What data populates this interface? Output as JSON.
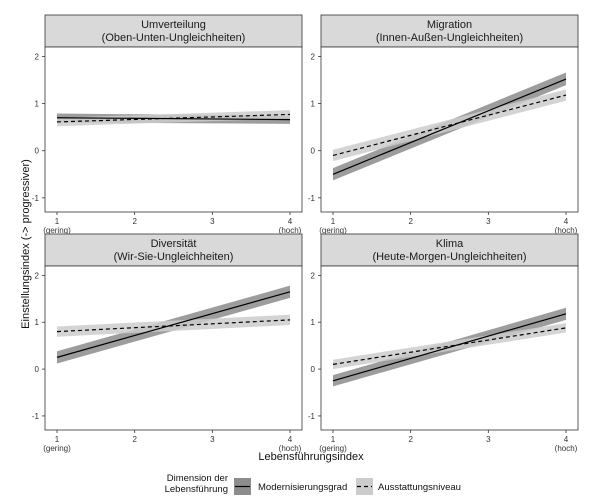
{
  "chart_data": {
    "type": "line",
    "ylabel": "Einstellungsindex (-> progressiver)",
    "xlabel": "Lebensführungsindex",
    "x_ticks": [
      "1\n(gering)",
      "2",
      "3",
      "4\n(hoch)"
    ],
    "x_tick_values": [
      1,
      2,
      3,
      4
    ],
    "xlim": [
      1,
      4
    ],
    "y_ticks": [
      "-1",
      "0",
      "1",
      "2"
    ],
    "y_tick_values": [
      -1,
      0,
      1,
      2
    ],
    "ylim": [
      -1.3,
      2.2
    ],
    "grid": false,
    "legend": {
      "title": "Dimension der\nLebensführung",
      "placement": "bottom",
      "entries": [
        {
          "label": "Modernisierungsgrad",
          "style": "solid",
          "band_color": "#8c8c8c"
        },
        {
          "label": "Ausstattungsniveau",
          "style": "dashed",
          "band_color": "#cccccc"
        }
      ]
    },
    "panels": [
      {
        "title_line1": "Umverteilung",
        "title_line2": "(Oben-Unten-Ungleichheiten)",
        "series": [
          {
            "name": "Modernisierungsgrad",
            "x": [
              1,
              4
            ],
            "y": [
              0.7,
              0.66
            ],
            "lower": [
              0.6,
              0.57
            ],
            "upper": [
              0.79,
              0.74
            ]
          },
          {
            "name": "Ausstattungsniveau",
            "x": [
              1,
              4
            ],
            "y": [
              0.61,
              0.77
            ],
            "lower": [
              0.52,
              0.68
            ],
            "upper": [
              0.7,
              0.86
            ]
          }
        ]
      },
      {
        "title_line1": "Migration",
        "title_line2": "(Innen-Außen-Ungleichheiten)",
        "series": [
          {
            "name": "Modernisierungsgrad",
            "x": [
              1,
              4
            ],
            "y": [
              -0.5,
              1.52
            ],
            "lower": [
              -0.63,
              1.39
            ],
            "upper": [
              -0.37,
              1.66
            ]
          },
          {
            "name": "Ausstattungsniveau",
            "x": [
              1,
              4
            ],
            "y": [
              -0.1,
              1.18
            ],
            "lower": [
              -0.22,
              1.06
            ],
            "upper": [
              0.02,
              1.3
            ]
          }
        ]
      },
      {
        "title_line1": "Diversität",
        "title_line2": "(Wir-Sie-Ungleichheiten)",
        "series": [
          {
            "name": "Modernisierungsgrad",
            "x": [
              1,
              4
            ],
            "y": [
              0.25,
              1.65
            ],
            "lower": [
              0.12,
              1.52
            ],
            "upper": [
              0.38,
              1.78
            ]
          },
          {
            "name": "Ausstattungsniveau",
            "x": [
              1,
              4
            ],
            "y": [
              0.8,
              1.05
            ],
            "lower": [
              0.69,
              0.94
            ],
            "upper": [
              0.91,
              1.16
            ]
          }
        ]
      },
      {
        "title_line1": "Klima",
        "title_line2": "(Heute-Morgen-Ungleichheiten)",
        "series": [
          {
            "name": "Modernisierungsgrad",
            "x": [
              1,
              4
            ],
            "y": [
              -0.25,
              1.18
            ],
            "lower": [
              -0.37,
              1.05
            ],
            "upper": [
              -0.13,
              1.31
            ]
          },
          {
            "name": "Ausstattungsniveau",
            "x": [
              1,
              4
            ],
            "y": [
              0.1,
              0.88
            ],
            "lower": [
              0.0,
              0.78
            ],
            "upper": [
              0.2,
              0.98
            ]
          }
        ]
      }
    ]
  }
}
